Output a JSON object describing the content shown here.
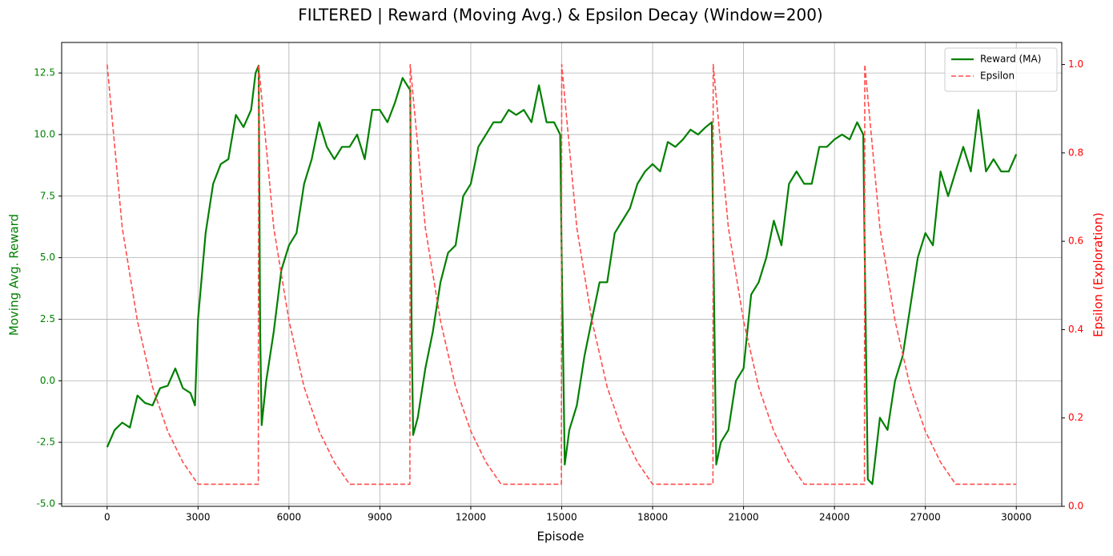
{
  "chart_data": {
    "type": "line",
    "title": "FILTERED | Reward (Moving Avg.) & Epsilon Decay (Window=200)",
    "x_label": "Episode",
    "y_label": "Moving Avg. Reward",
    "y2_label": "Epsilon (Exploration)",
    "xlim": [
      -1500,
      31500
    ],
    "xticks": [
      0,
      3000,
      6000,
      9000,
      12000,
      15000,
      18000,
      21000,
      24000,
      27000,
      30000
    ],
    "ylim": [
      -5.1,
      13.74
    ],
    "yticks": [
      {
        "value": -5,
        "label": "-5.0"
      },
      -2.5,
      {
        "value": 0,
        "label": "0.0"
      },
      2.5,
      {
        "value": 5,
        "label": "5.0"
      },
      7.5,
      {
        "value": 10,
        "label": "10.0"
      },
      12.5
    ],
    "y2lim": [
      0,
      1.05
    ],
    "y2ticks": [
      {
        "value": 0,
        "label": "0.0"
      },
      0.2,
      0.4,
      0.6,
      0.8,
      {
        "value": 1,
        "label": "1.0"
      }
    ],
    "grid": true,
    "legend": "upper right",
    "series": [
      {
        "name": "Reward (MA)",
        "color": "#008000",
        "axis": "y",
        "x": [
          0,
          250,
          500,
          750,
          1000,
          1250,
          1500,
          1750,
          2000,
          2250,
          2500,
          2750,
          2900,
          3000,
          3250,
          3500,
          3750,
          4000,
          4250,
          4500,
          4750,
          4900,
          5000,
          5050,
          5100,
          5250,
          5500,
          5750,
          6000,
          6250,
          6500,
          6750,
          7000,
          7250,
          7500,
          7750,
          8000,
          8250,
          8500,
          8750,
          9000,
          9250,
          9500,
          9750,
          9900,
          10000,
          10050,
          10100,
          10250,
          10500,
          10750,
          11000,
          11250,
          11500,
          11750,
          12000,
          12250,
          12500,
          12750,
          13000,
          13250,
          13500,
          13750,
          14000,
          14250,
          14500,
          14750,
          14950,
          15000,
          15100,
          15250,
          15500,
          15750,
          16000,
          16250,
          16500,
          16750,
          17000,
          17250,
          17500,
          17750,
          18000,
          18250,
          18500,
          18750,
          19000,
          19250,
          19500,
          19750,
          19950,
          20000,
          20100,
          20250,
          20500,
          20750,
          21000,
          21250,
          21500,
          21750,
          22000,
          22250,
          22500,
          22750,
          23000,
          23250,
          23500,
          23750,
          24000,
          24250,
          24500,
          24750,
          24950,
          25000,
          25100,
          25250,
          25500,
          25750,
          26000,
          26250,
          26500,
          26750,
          27000,
          27250,
          27500,
          27750,
          28000,
          28250,
          28500,
          28750,
          29000,
          29250,
          29500,
          29750,
          30000
        ],
        "values": [
          -2.7,
          -2.0,
          -1.7,
          -1.9,
          -0.6,
          -0.9,
          -1.0,
          -0.3,
          -0.2,
          0.5,
          -0.3,
          -0.5,
          -1.0,
          2.5,
          6,
          8,
          8.8,
          9.0,
          10.8,
          10.3,
          11.0,
          12.5,
          12.8,
          2.0,
          -1.8,
          0.0,
          2.0,
          4.5,
          5.5,
          6.0,
          8.0,
          9.0,
          10.5,
          9.5,
          9.0,
          9.5,
          9.5,
          10.0,
          9.0,
          11.0,
          11.0,
          10.5,
          11.3,
          12.3,
          12.0,
          11.8,
          2.0,
          -2.2,
          -1.5,
          0.5,
          2.0,
          4.0,
          5.2,
          5.5,
          7.5,
          8.0,
          9.5,
          10.0,
          10.5,
          10.5,
          11.0,
          10.8,
          11.0,
          10.5,
          12.0,
          10.5,
          10.5,
          10.0,
          5,
          -3.4,
          -2.0,
          -1.0,
          1.0,
          2.5,
          4.0,
          4.0,
          6.0,
          6.5,
          7.0,
          8.0,
          8.5,
          8.8,
          8.5,
          9.7,
          9.5,
          9.8,
          10.2,
          10.0,
          10.3,
          10.5,
          6,
          -3.4,
          -2.5,
          -2.0,
          0.0,
          0.5,
          3.5,
          4.0,
          5.0,
          6.5,
          5.5,
          8.0,
          8.5,
          8.0,
          8.0,
          9.5,
          9.5,
          9.8,
          10.0,
          9.8,
          10.5,
          10.0,
          5,
          -4.0,
          -4.2,
          -1.5,
          -2.0,
          0.0,
          1.0,
          3.0,
          5.0,
          6.0,
          5.5,
          8.5,
          7.5,
          8.5,
          9.5,
          8.5,
          11.0,
          8.5,
          9.0,
          8.5,
          8.5,
          9.2
        ]
      },
      {
        "name": "Epsilon",
        "color": "#ff4d4d",
        "axis": "y2",
        "dashed": true,
        "x": [
          0,
          500,
          1000,
          1500,
          2000,
          2500,
          3000,
          4990,
          5000,
          5500,
          6000,
          6500,
          7000,
          7500,
          8000,
          9990,
          10000,
          10500,
          11000,
          11500,
          12000,
          12500,
          13000,
          14990,
          15000,
          15500,
          16000,
          16500,
          17000,
          17500,
          18000,
          19990,
          20000,
          20500,
          21000,
          21500,
          22000,
          22500,
          23000,
          24990,
          25000,
          25500,
          26000,
          26500,
          27000,
          27500,
          28000,
          30000
        ],
        "values": [
          1.0,
          0.63,
          0.42,
          0.27,
          0.17,
          0.1,
          0.05,
          0.05,
          1.0,
          0.63,
          0.42,
          0.27,
          0.17,
          0.1,
          0.05,
          0.05,
          1.0,
          0.63,
          0.42,
          0.27,
          0.17,
          0.1,
          0.05,
          0.05,
          1.0,
          0.63,
          0.42,
          0.27,
          0.17,
          0.1,
          0.05,
          0.05,
          1.0,
          0.63,
          0.42,
          0.27,
          0.17,
          0.1,
          0.05,
          0.05,
          1.0,
          0.63,
          0.42,
          0.27,
          0.17,
          0.1,
          0.05,
          0.05
        ]
      }
    ]
  }
}
